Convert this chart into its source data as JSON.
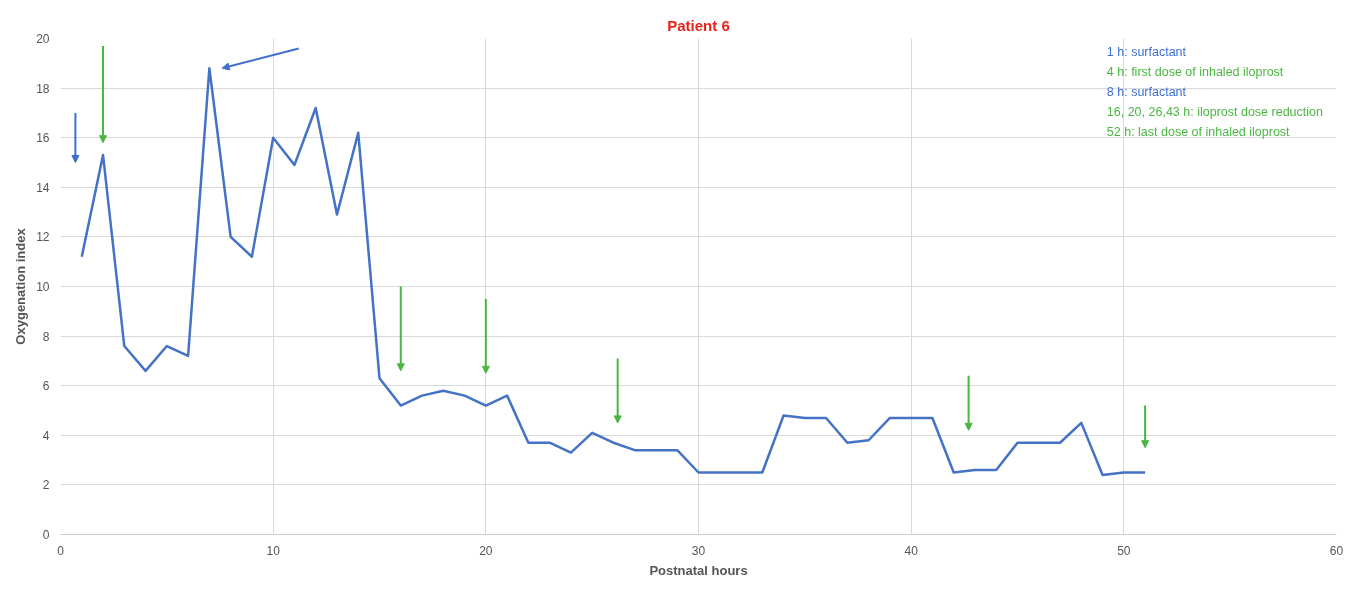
{
  "chart_data": {
    "type": "line",
    "title": "Patient 6",
    "xlabel": "Postnatal hours",
    "ylabel": "Oxygenation index",
    "x": [
      1,
      2,
      3,
      4,
      5,
      6,
      7,
      8,
      9,
      10,
      11,
      12,
      13,
      14,
      15,
      16,
      17,
      18,
      19,
      20,
      21,
      22,
      23,
      24,
      25,
      26,
      27,
      28,
      29,
      30,
      31,
      32,
      33,
      34,
      35,
      36,
      37,
      38,
      39,
      40,
      41,
      42,
      43,
      44,
      45,
      46,
      47,
      48,
      49,
      50,
      51
    ],
    "series": [
      {
        "color": "#4472c4",
        "values": [
          11.2,
          15.3,
          7.6,
          6.6,
          7.6,
          7.2,
          18.8,
          12.0,
          11.2,
          16.0,
          14.9,
          17.2,
          12.9,
          16.2,
          6.3,
          5.2,
          5.6,
          5.8,
          5.6,
          5.2,
          5.6,
          3.7,
          3.7,
          3.3,
          4.1,
          3.7,
          3.4,
          3.4,
          3.4,
          2.5,
          2.5,
          2.5,
          2.5,
          4.8,
          4.7,
          4.7,
          3.7,
          3.8,
          4.7,
          4.7,
          4.7,
          2.5,
          2.6,
          2.6,
          3.7,
          3.7,
          3.7,
          4.5,
          2.4,
          2.5,
          2.5
        ]
      }
    ],
    "xlim": [
      0,
      60
    ],
    "ylim": [
      0,
      20
    ],
    "xticks": [
      0,
      10,
      20,
      30,
      40,
      50,
      60
    ],
    "yticks": [
      0,
      2,
      4,
      6,
      8,
      10,
      12,
      14,
      16,
      18,
      20
    ],
    "grid": true,
    "marker": "none",
    "line_style": "solid",
    "annotations": [
      "1 h: surfactant",
      "4 h: first dose of inhaled iloprost",
      "8 h: surfactant",
      "16, 20, 26,43 h: iloprost dose reduction",
      "52 h: last dose of inhaled iloprost"
    ]
  }
}
